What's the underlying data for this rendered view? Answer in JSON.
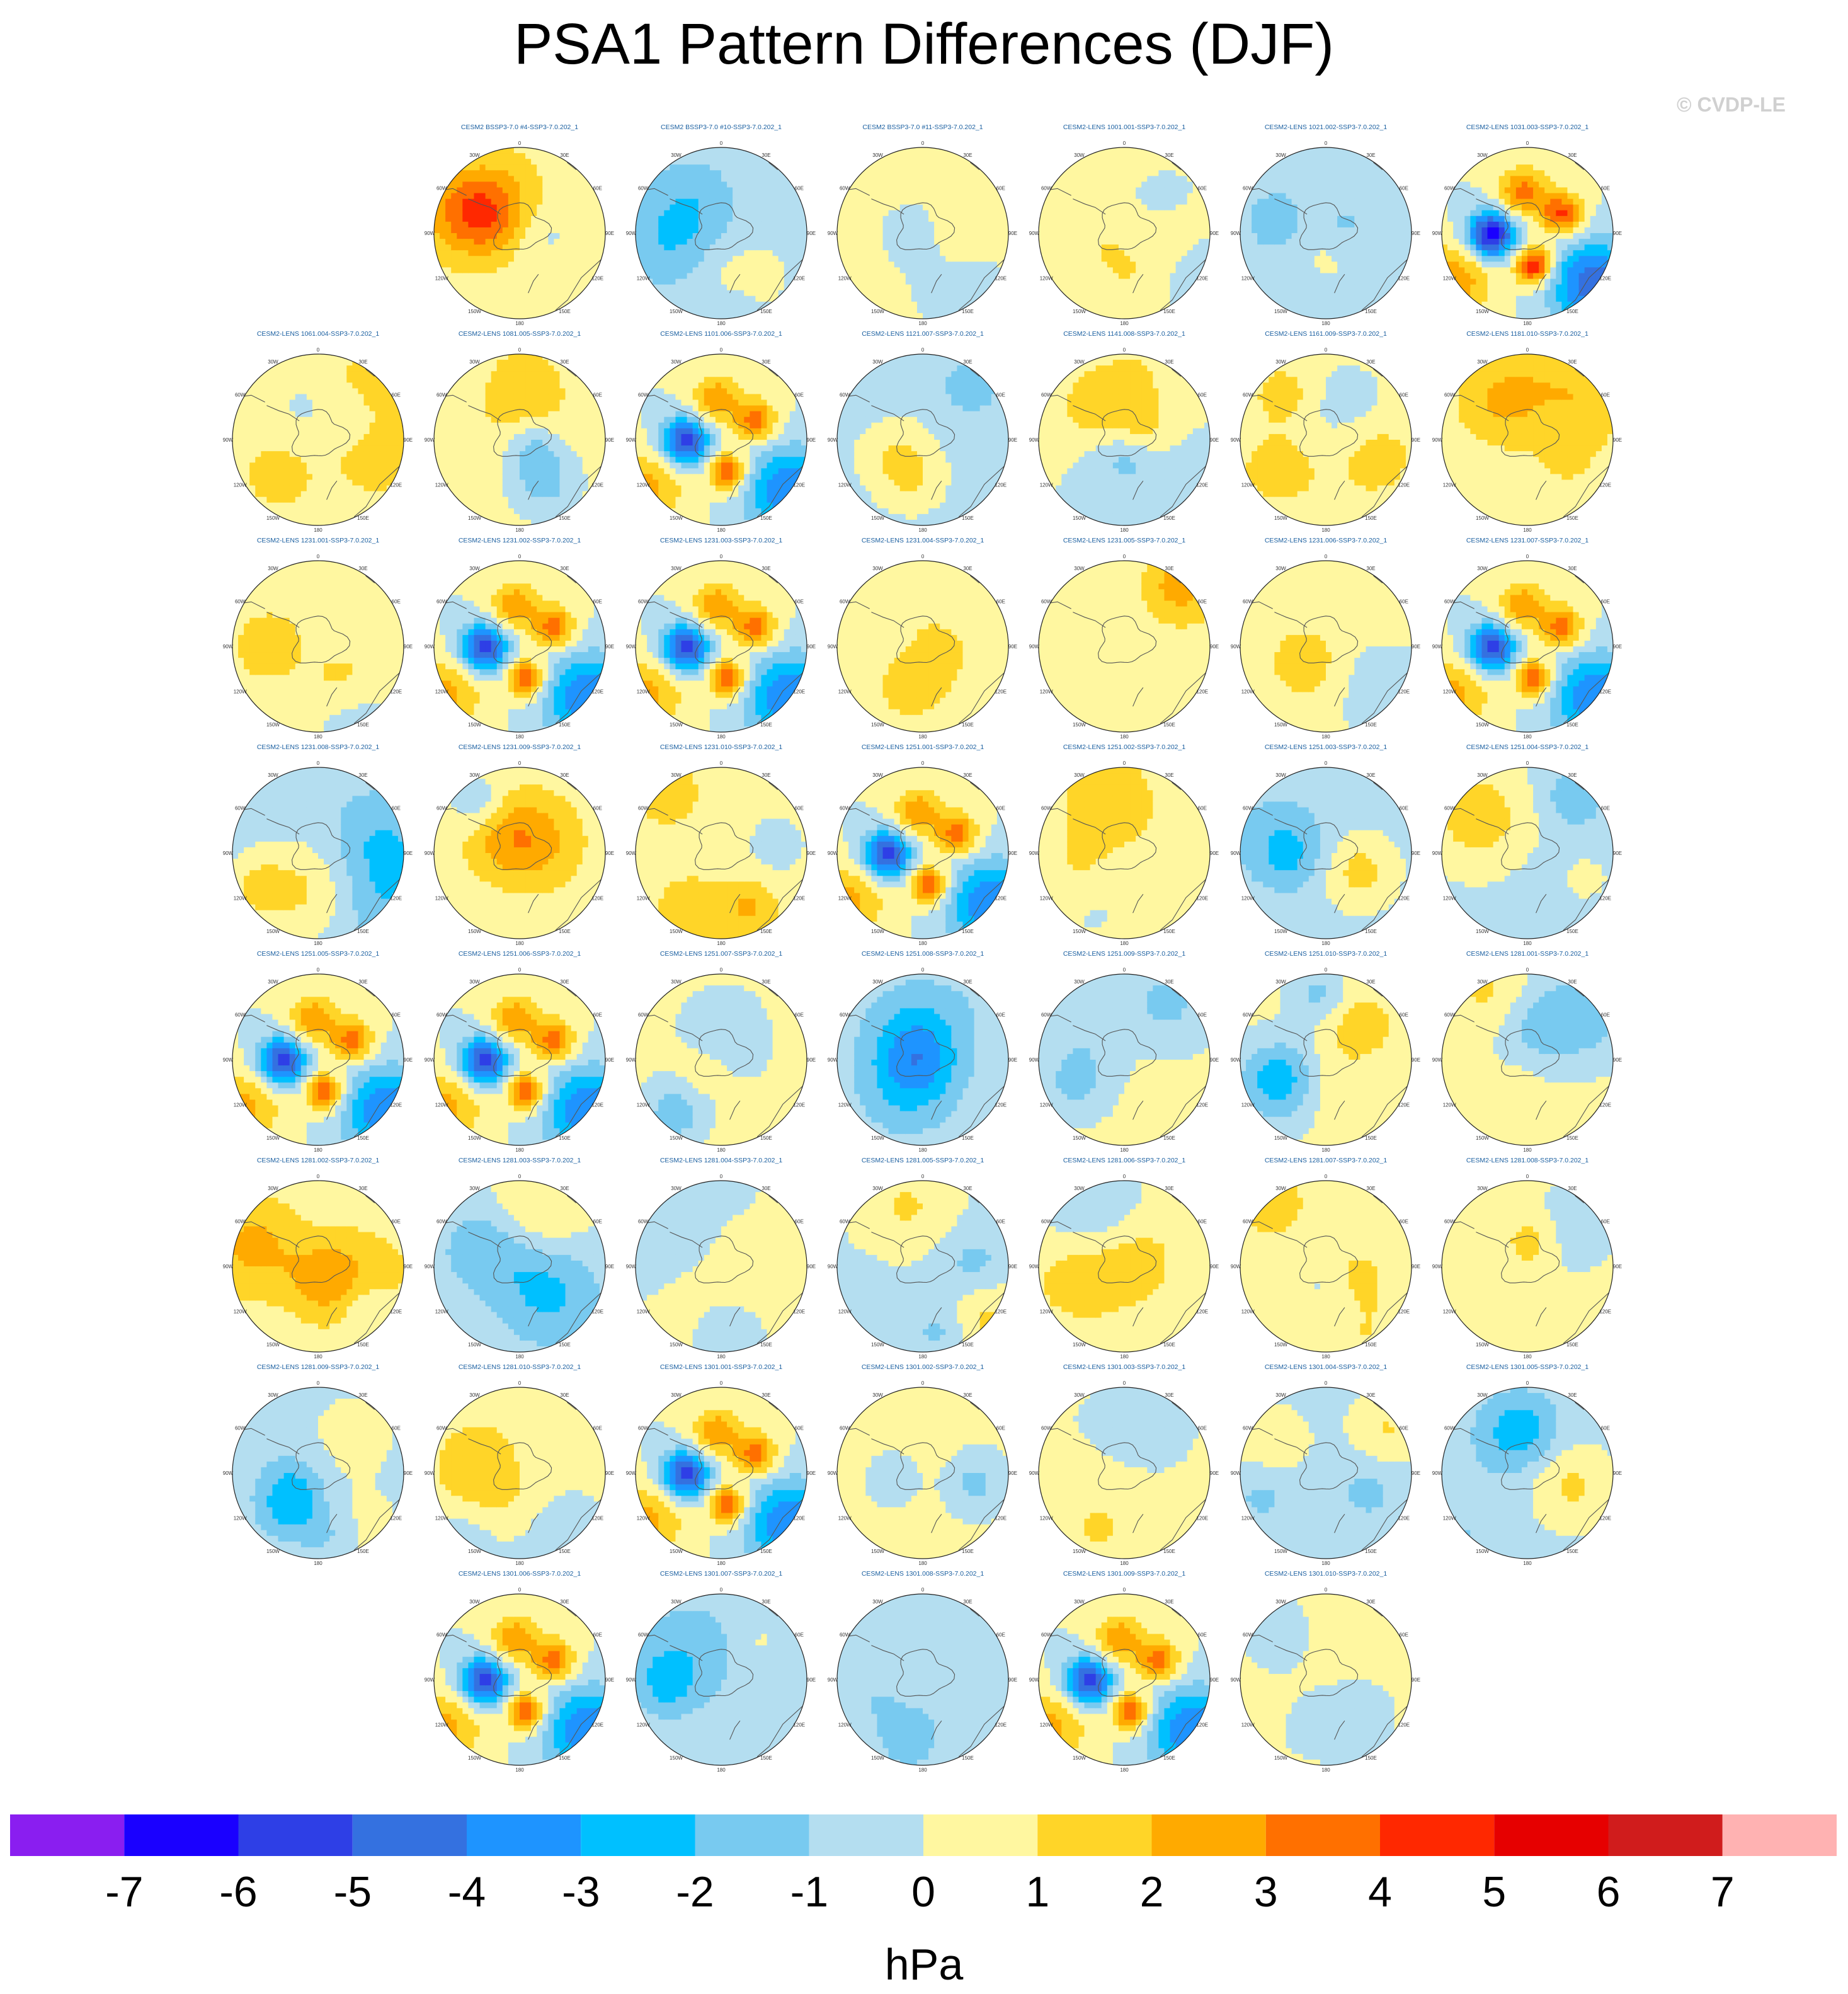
{
  "title": "PSA1 Pattern Differences (DJF)",
  "watermark": "© CVDP-LE",
  "map_labels": {
    "meridians_top": [
      "30W",
      "0",
      "30E"
    ],
    "meridians_side": [
      "60W",
      "60E"
    ],
    "meridians_mid": [
      "90W",
      "90E"
    ],
    "meridians_low": [
      "120W",
      "120E"
    ],
    "meridians_bottom": [
      "150W",
      "180",
      "150E"
    ]
  },
  "colors": {
    "levels": [
      "#8a1ef0",
      "#1a00ff",
      "#2e3fe6",
      "#3471e0",
      "#1e94ff",
      "#00c0ff",
      "#78caf0",
      "#b4def0",
      "#fff7a0",
      "#ffd528",
      "#ffaa00",
      "#ff7000",
      "#ff2800",
      "#e60000",
      "#d01c1c",
      "#ffb2b2"
    ],
    "coast": "#555555",
    "panel_title": "#1a5fa0"
  },
  "chart_data": {
    "type": "heatmap",
    "title": "PSA1 Pattern Differences (DJF)",
    "projection": "south polar stereographic",
    "colorbar": {
      "unit": "hPa",
      "tick_labels": [
        "-7",
        "-6",
        "-5",
        "-4",
        "-3",
        "-2",
        "-1",
        "0",
        "1",
        "2",
        "3",
        "4",
        "5",
        "6",
        "7"
      ],
      "levels": [
        -7,
        -6,
        -5,
        -4,
        -3,
        -2,
        -1,
        0,
        1,
        2,
        3,
        4,
        5,
        6,
        7
      ]
    },
    "panels": [
      {
        "row": 0,
        "col": 1,
        "title": "CESM2 BSSP3-7.0 #4-SSP3-7.0.202_1",
        "amp": 1,
        "strong": false,
        "bias": 0.6
      },
      {
        "row": 0,
        "col": 2,
        "title": "CESM2 BSSP3-7.0 #10-SSP3-7.0.202_1",
        "amp": 1,
        "strong": false,
        "bias": -0.3
      },
      {
        "row": 0,
        "col": 3,
        "title": "CESM2 BSSP3-7.0 #11-SSP3-7.0.202_1",
        "amp": 1,
        "strong": false,
        "bias": 0.3
      },
      {
        "row": 0,
        "col": 4,
        "title": "CESM2-LENS 1001.001-SSP3-7.0.202_1",
        "amp": 1,
        "strong": false,
        "bias": 0
      },
      {
        "row": 0,
        "col": 5,
        "title": "CESM2-LENS 1021.002-SSP3-7.0.202_1",
        "amp": 1,
        "strong": false,
        "bias": -0.3
      },
      {
        "row": 0,
        "col": 6,
        "title": "CESM2-LENS 1031.003-SSP3-7.0.202_1",
        "amp": 6,
        "strong": true,
        "bias": 0
      },
      {
        "row": 1,
        "col": 0,
        "title": "CESM2-LENS 1061.004-SSP3-7.0.202_1",
        "amp": 1,
        "strong": false,
        "bias": 0.6
      },
      {
        "row": 1,
        "col": 1,
        "title": "CESM2-LENS 1081.005-SSP3-7.0.202_1",
        "amp": 1,
        "strong": false,
        "bias": 0.4
      },
      {
        "row": 1,
        "col": 2,
        "title": "CESM2-LENS 1101.006-SSP3-7.0.202_1",
        "amp": 5,
        "strong": true,
        "bias": 0
      },
      {
        "row": 1,
        "col": 3,
        "title": "CESM2-LENS 1121.007-SSP3-7.0.202_1",
        "amp": 1,
        "strong": false,
        "bias": -0.4
      },
      {
        "row": 1,
        "col": 4,
        "title": "CESM2-LENS 1141.008-SSP3-7.0.202_1",
        "amp": 1,
        "strong": false,
        "bias": 0
      },
      {
        "row": 1,
        "col": 5,
        "title": "CESM2-LENS 1161.009-SSP3-7.0.202_1",
        "amp": 1,
        "strong": false,
        "bias": 0.3
      },
      {
        "row": 1,
        "col": 6,
        "title": "CESM2-LENS 1181.010-SSP3-7.0.202_1",
        "amp": 1,
        "strong": false,
        "bias": 0.4
      },
      {
        "row": 2,
        "col": 0,
        "title": "CESM2-LENS 1231.001-SSP3-7.0.202_1",
        "amp": 1,
        "strong": false,
        "bias": 0.4
      },
      {
        "row": 2,
        "col": 1,
        "title": "CESM2-LENS 1231.002-SSP3-7.0.202_1",
        "amp": 5,
        "strong": true,
        "bias": 0
      },
      {
        "row": 2,
        "col": 2,
        "title": "CESM2-LENS 1231.003-SSP3-7.0.202_1",
        "amp": 5,
        "strong": true,
        "bias": 0
      },
      {
        "row": 2,
        "col": 3,
        "title": "CESM2-LENS 1231.004-SSP3-7.0.202_1",
        "amp": 1,
        "strong": false,
        "bias": 0.3
      },
      {
        "row": 2,
        "col": 4,
        "title": "CESM2-LENS 1231.005-SSP3-7.0.202_1",
        "amp": 1,
        "strong": false,
        "bias": 0
      },
      {
        "row": 2,
        "col": 5,
        "title": "CESM2-LENS 1231.006-SSP3-7.0.202_1",
        "amp": 1,
        "strong": false,
        "bias": 0.3
      },
      {
        "row": 2,
        "col": 6,
        "title": "CESM2-LENS 1231.007-SSP3-7.0.202_1",
        "amp": 5,
        "strong": true,
        "bias": 0
      },
      {
        "row": 3,
        "col": 0,
        "title": "CESM2-LENS 1231.008-SSP3-7.0.202_1",
        "amp": 1,
        "strong": false,
        "bias": -0.4
      },
      {
        "row": 3,
        "col": 1,
        "title": "CESM2-LENS 1231.009-SSP3-7.0.202_1",
        "amp": 1,
        "strong": false,
        "bias": 0.4
      },
      {
        "row": 3,
        "col": 2,
        "title": "CESM2-LENS 1231.010-SSP3-7.0.202_1",
        "amp": 1,
        "strong": false,
        "bias": 0.5
      },
      {
        "row": 3,
        "col": 3,
        "title": "CESM2-LENS 1251.001-SSP3-7.0.202_1",
        "amp": 5,
        "strong": true,
        "bias": 0
      },
      {
        "row": 3,
        "col": 4,
        "title": "CESM2-LENS 1251.002-SSP3-7.0.202_1",
        "amp": 1,
        "strong": false,
        "bias": 0.3
      },
      {
        "row": 3,
        "col": 5,
        "title": "CESM2-LENS 1251.003-SSP3-7.0.202_1",
        "amp": 1,
        "strong": false,
        "bias": -0.3
      },
      {
        "row": 3,
        "col": 6,
        "title": "CESM2-LENS 1251.004-SSP3-7.0.202_1",
        "amp": 1,
        "strong": false,
        "bias": -0.2
      },
      {
        "row": 4,
        "col": 0,
        "title": "CESM2-LENS 1251.005-SSP3-7.0.202_1",
        "amp": 5,
        "strong": true,
        "bias": 0
      },
      {
        "row": 4,
        "col": 1,
        "title": "CESM2-LENS 1251.006-SSP3-7.0.202_1",
        "amp": 5,
        "strong": true,
        "bias": 0
      },
      {
        "row": 4,
        "col": 2,
        "title": "CESM2-LENS 1251.007-SSP3-7.0.202_1",
        "amp": 1,
        "strong": false,
        "bias": 0.4
      },
      {
        "row": 4,
        "col": 3,
        "title": "CESM2-LENS 1251.008-SSP3-7.0.202_1",
        "amp": 1,
        "strong": false,
        "bias": -0.4
      },
      {
        "row": 4,
        "col": 4,
        "title": "CESM2-LENS 1251.009-SSP3-7.0.202_1",
        "amp": 1,
        "strong": false,
        "bias": 0.4
      },
      {
        "row": 4,
        "col": 5,
        "title": "CESM2-LENS 1251.010-SSP3-7.0.202_1",
        "amp": 1,
        "strong": false,
        "bias": 0.3
      },
      {
        "row": 4,
        "col": 6,
        "title": "CESM2-LENS 1281.001-SSP3-7.0.202_1",
        "amp": 1,
        "strong": false,
        "bias": 0.3
      },
      {
        "row": 5,
        "col": 0,
        "title": "CESM2-LENS 1281.002-SSP3-7.0.202_1",
        "amp": 1,
        "strong": false,
        "bias": 0.5
      },
      {
        "row": 5,
        "col": 1,
        "title": "CESM2-LENS 1281.003-SSP3-7.0.202_1",
        "amp": 1,
        "strong": false,
        "bias": -0.2
      },
      {
        "row": 5,
        "col": 2,
        "title": "CESM2-LENS 1281.004-SSP3-7.0.202_1",
        "amp": 1,
        "strong": false,
        "bias": 0
      },
      {
        "row": 5,
        "col": 3,
        "title": "CESM2-LENS 1281.005-SSP3-7.0.202_1",
        "amp": 1,
        "strong": false,
        "bias": -0.2
      },
      {
        "row": 5,
        "col": 4,
        "title": "CESM2-LENS 1281.006-SSP3-7.0.202_1",
        "amp": 1,
        "strong": false,
        "bias": 0.3
      },
      {
        "row": 5,
        "col": 5,
        "title": "CESM2-LENS 1281.007-SSP3-7.0.202_1",
        "amp": 1,
        "strong": false,
        "bias": 0.2
      },
      {
        "row": 5,
        "col": 6,
        "title": "CESM2-LENS 1281.008-SSP3-7.0.202_1",
        "amp": 1,
        "strong": false,
        "bias": 0.3
      },
      {
        "row": 6,
        "col": 0,
        "title": "CESM2-LENS 1281.009-SSP3-7.0.202_1",
        "amp": 1,
        "strong": false,
        "bias": -0.4
      },
      {
        "row": 6,
        "col": 1,
        "title": "CESM2-LENS 1281.010-SSP3-7.0.202_1",
        "amp": 1,
        "strong": false,
        "bias": 0.3
      },
      {
        "row": 6,
        "col": 2,
        "title": "CESM2-LENS 1301.001-SSP3-7.0.202_1",
        "amp": 5,
        "strong": true,
        "bias": 0
      },
      {
        "row": 6,
        "col": 3,
        "title": "CESM2-LENS 1301.002-SSP3-7.0.202_1",
        "amp": 1,
        "strong": false,
        "bias": 0.2
      },
      {
        "row": 6,
        "col": 4,
        "title": "CESM2-LENS 1301.003-SSP3-7.0.202_1",
        "amp": 1,
        "strong": false,
        "bias": 0.4
      },
      {
        "row": 6,
        "col": 5,
        "title": "CESM2-LENS 1301.004-SSP3-7.0.202_1",
        "amp": 1,
        "strong": false,
        "bias": -0.3
      },
      {
        "row": 6,
        "col": 6,
        "title": "CESM2-LENS 1301.005-SSP3-7.0.202_1",
        "amp": 1,
        "strong": false,
        "bias": -0.3
      },
      {
        "row": 7,
        "col": 1,
        "title": "CESM2-LENS 1301.006-SSP3-7.0.202_1",
        "amp": 5,
        "strong": true,
        "bias": 0
      },
      {
        "row": 7,
        "col": 2,
        "title": "CESM2-LENS 1301.007-SSP3-7.0.202_1",
        "amp": 1,
        "strong": false,
        "bias": -0.3
      },
      {
        "row": 7,
        "col": 3,
        "title": "CESM2-LENS 1301.008-SSP3-7.0.202_1",
        "amp": 1,
        "strong": false,
        "bias": -0.3
      },
      {
        "row": 7,
        "col": 4,
        "title": "CESM2-LENS 1301.009-SSP3-7.0.202_1",
        "amp": 5,
        "strong": true,
        "bias": 0
      },
      {
        "row": 7,
        "col": 5,
        "title": "CESM2-LENS 1301.010-SSP3-7.0.202_1",
        "amp": 1,
        "strong": false,
        "bias": 0.5
      }
    ]
  }
}
